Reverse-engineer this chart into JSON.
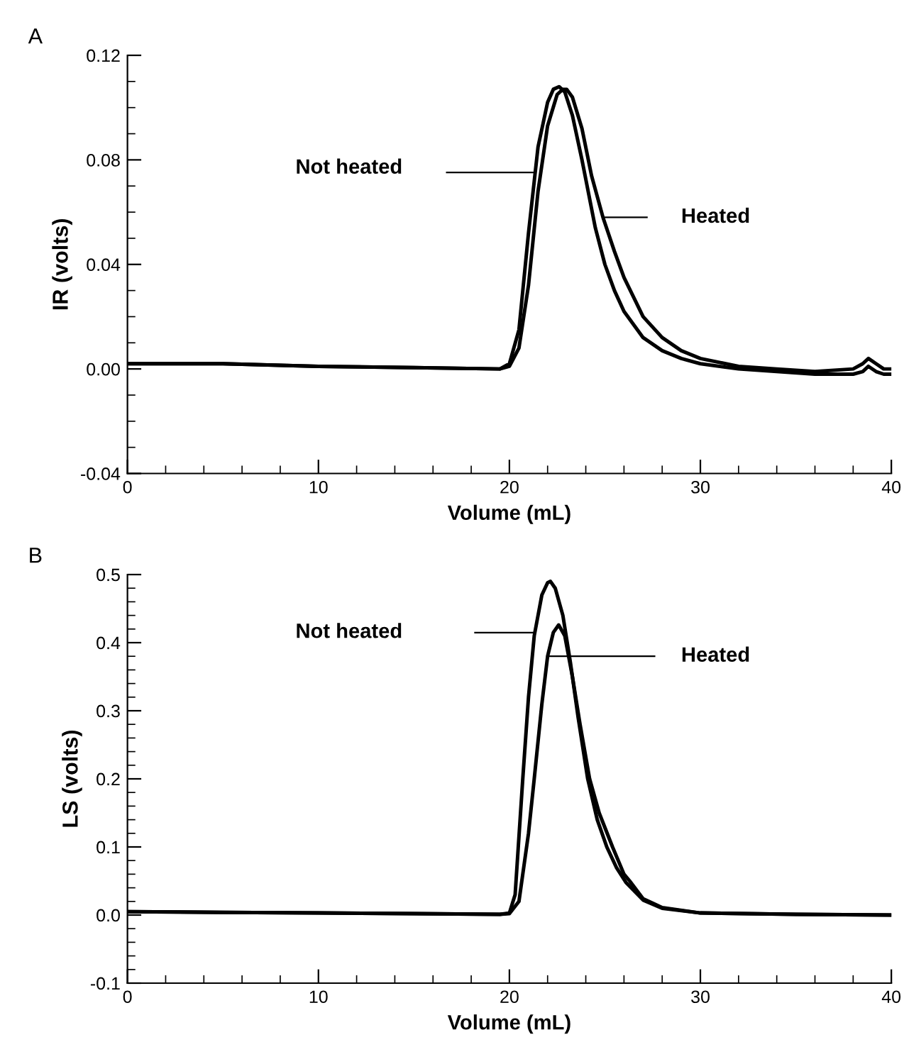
{
  "chart_data": [
    {
      "type": "line",
      "title": "A",
      "xlabel": "Volume (mL)",
      "ylabel": "IR (volts)",
      "xlim": [
        0,
        40
      ],
      "ylim": [
        -0.04,
        0.12
      ],
      "xticks": [
        0,
        10,
        20,
        30,
        40
      ],
      "yticks": [
        -0.04,
        {
          "value": 0,
          "label": "0.00"
        },
        0.04,
        0.08,
        0.12
      ],
      "grid": false,
      "legend": false,
      "marker": "none",
      "line_style": "solid",
      "series": [
        {
          "color": "#000000",
          "x": [
            0,
            5,
            10,
            15,
            19.5,
            20,
            20.5,
            21,
            21.5,
            22,
            22.3,
            22.6,
            22.9,
            23.3,
            23.8,
            24.5,
            25,
            25.5,
            26,
            27,
            28,
            29,
            30,
            32,
            34,
            36,
            38,
            38.5,
            38.8,
            39.2,
            39.6,
            40
          ],
          "values": [
            0.002,
            0.002,
            0.001,
            0.0005,
            0,
            0.002,
            0.015,
            0.052,
            0.085,
            0.102,
            0.107,
            0.108,
            0.106,
            0.097,
            0.08,
            0.054,
            0.04,
            0.03,
            0.022,
            0.012,
            0.007,
            0.004,
            0.002,
            0.0,
            -0.001,
            -0.002,
            -0.002,
            -0.001,
            0.001,
            -0.001,
            -0.002,
            -0.002
          ]
        },
        {
          "color": "#000000",
          "x": [
            0,
            5,
            10,
            15,
            19.5,
            20,
            20.5,
            21,
            21.5,
            22,
            22.5,
            22.8,
            23,
            23.3,
            23.8,
            24.3,
            24.9,
            25.5,
            26,
            27,
            28,
            29,
            30,
            32,
            34,
            36,
            38,
            38.5,
            38.8,
            39.2,
            39.6,
            40
          ],
          "values": [
            0.002,
            0.002,
            0.001,
            0.0005,
            0,
            0.001,
            0.008,
            0.032,
            0.068,
            0.093,
            0.105,
            0.107,
            0.107,
            0.104,
            0.092,
            0.074,
            0.058,
            0.045,
            0.035,
            0.02,
            0.012,
            0.007,
            0.004,
            0.001,
            0,
            -0.001,
            0,
            0.002,
            0.004,
            0.002,
            0,
            0
          ]
        }
      ],
      "annotations": [
        "Not heated",
        "Heated"
      ]
    },
    {
      "type": "line",
      "title": "B",
      "xlabel": "Volume (mL)",
      "ylabel": "LS (volts)",
      "xlim": [
        0,
        40
      ],
      "ylim": [
        -0.1,
        0.5
      ],
      "xticks": [
        0,
        10,
        20,
        30,
        40
      ],
      "yticks": [
        -0.1,
        {
          "value": 0,
          "label": "0.0"
        },
        0.1,
        0.2,
        0.3,
        0.4,
        0.5
      ],
      "grid": false,
      "legend": false,
      "marker": "none",
      "line_style": "solid",
      "series": [
        {
          "color": "#000000",
          "x": [
            0,
            5,
            10,
            15,
            19.5,
            20,
            20.3,
            20.7,
            21,
            21.3,
            21.7,
            22,
            22.15,
            22.4,
            22.8,
            23.2,
            23.6,
            24.1,
            24.6,
            25.1,
            25.6,
            26.1,
            27,
            28,
            30,
            35,
            40
          ],
          "values": [
            0.005,
            0.004,
            0.003,
            0.002,
            0.001,
            0.003,
            0.03,
            0.2,
            0.32,
            0.41,
            0.47,
            0.488,
            0.49,
            0.48,
            0.44,
            0.37,
            0.29,
            0.2,
            0.14,
            0.1,
            0.07,
            0.048,
            0.022,
            0.01,
            0.003,
            0.001,
            0
          ]
        },
        {
          "color": "#000000",
          "x": [
            0,
            5,
            10,
            15,
            19.5,
            20,
            20.5,
            21,
            21.3,
            21.7,
            22,
            22.3,
            22.58,
            22.9,
            23.3,
            23.7,
            24.2,
            24.7,
            25.4,
            26,
            26.3,
            27,
            28,
            30,
            35,
            40
          ],
          "values": [
            0.005,
            0.004,
            0.003,
            0.002,
            0.001,
            0.002,
            0.02,
            0.12,
            0.2,
            0.31,
            0.38,
            0.415,
            0.426,
            0.41,
            0.35,
            0.28,
            0.2,
            0.15,
            0.1,
            0.06,
            0.05,
            0.024,
            0.011,
            0.003,
            0.001,
            0
          ]
        }
      ],
      "annotations": [
        "Not heated",
        "Heated"
      ]
    }
  ]
}
